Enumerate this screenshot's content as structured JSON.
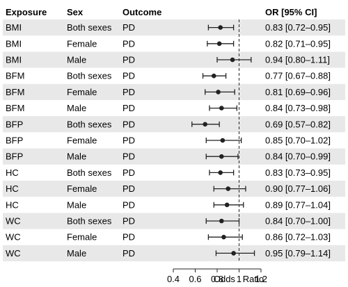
{
  "chart_data": {
    "type": "forest",
    "columns": [
      "Exposure",
      "Sex",
      "Outcome",
      "OR [95% CI]"
    ],
    "rows": [
      {
        "exposure": "BMI",
        "sex": "Both sexes",
        "outcome": "PD",
        "or": 0.83,
        "lo": 0.72,
        "hi": 0.95,
        "label": "0.83 [0.72–0.95]"
      },
      {
        "exposure": "BMI",
        "sex": "Female",
        "outcome": "PD",
        "or": 0.82,
        "lo": 0.71,
        "hi": 0.95,
        "label": "0.82 [0.71–0.95]"
      },
      {
        "exposure": "BMI",
        "sex": "Male",
        "outcome": "PD",
        "or": 0.94,
        "lo": 0.8,
        "hi": 1.11,
        "label": "0.94 [0.80–1.11]"
      },
      {
        "exposure": "BFM",
        "sex": "Both sexes",
        "outcome": "PD",
        "or": 0.77,
        "lo": 0.67,
        "hi": 0.88,
        "label": "0.77 [0.67–0.88]"
      },
      {
        "exposure": "BFM",
        "sex": "Female",
        "outcome": "PD",
        "or": 0.81,
        "lo": 0.69,
        "hi": 0.96,
        "label": "0.81 [0.69–0.96]"
      },
      {
        "exposure": "BFM",
        "sex": "Male",
        "outcome": "PD",
        "or": 0.84,
        "lo": 0.73,
        "hi": 0.98,
        "label": "0.84 [0.73–0.98]"
      },
      {
        "exposure": "BFP",
        "sex": "Both sexes",
        "outcome": "PD",
        "or": 0.69,
        "lo": 0.57,
        "hi": 0.82,
        "label": "0.69 [0.57–0.82]"
      },
      {
        "exposure": "BFP",
        "sex": "Female",
        "outcome": "PD",
        "or": 0.85,
        "lo": 0.7,
        "hi": 1.02,
        "label": "0.85 [0.70–1.02]"
      },
      {
        "exposure": "BFP",
        "sex": "Male",
        "outcome": "PD",
        "or": 0.84,
        "lo": 0.7,
        "hi": 0.99,
        "label": "0.84 [0.70–0.99]"
      },
      {
        "exposure": "HC",
        "sex": "Both sexes",
        "outcome": "PD",
        "or": 0.83,
        "lo": 0.73,
        "hi": 0.95,
        "label": "0.83 [0.73–0.95]"
      },
      {
        "exposure": "HC",
        "sex": "Female",
        "outcome": "PD",
        "or": 0.9,
        "lo": 0.77,
        "hi": 1.06,
        "label": "0.90 [0.77–1.06]"
      },
      {
        "exposure": "HC",
        "sex": "Male",
        "outcome": "PD",
        "or": 0.89,
        "lo": 0.77,
        "hi": 1.04,
        "label": "0.89 [0.77–1.04]"
      },
      {
        "exposure": "WC",
        "sex": "Both sexes",
        "outcome": "PD",
        "or": 0.84,
        "lo": 0.7,
        "hi": 1.0,
        "label": "0.84 [0.70–1.00]"
      },
      {
        "exposure": "WC",
        "sex": "Female",
        "outcome": "PD",
        "or": 0.86,
        "lo": 0.72,
        "hi": 1.03,
        "label": "0.86 [0.72–1.03]"
      },
      {
        "exposure": "WC",
        "sex": "Male",
        "outcome": "PD",
        "or": 0.95,
        "lo": 0.79,
        "hi": 1.14,
        "label": "0.95 [0.79–1.14]"
      }
    ],
    "xlabel": "Odds   Ratio",
    "xlim": [
      0.4,
      1.2
    ],
    "xticks": [
      0.4,
      0.6,
      0.8,
      1,
      1.2
    ],
    "reference_line": 1,
    "reference_line_style": "dashed",
    "row_shading": "alternating",
    "grid": false
  },
  "colors": {
    "shade": "#e8e8e8",
    "mark": "#222222",
    "text": "#000000"
  }
}
